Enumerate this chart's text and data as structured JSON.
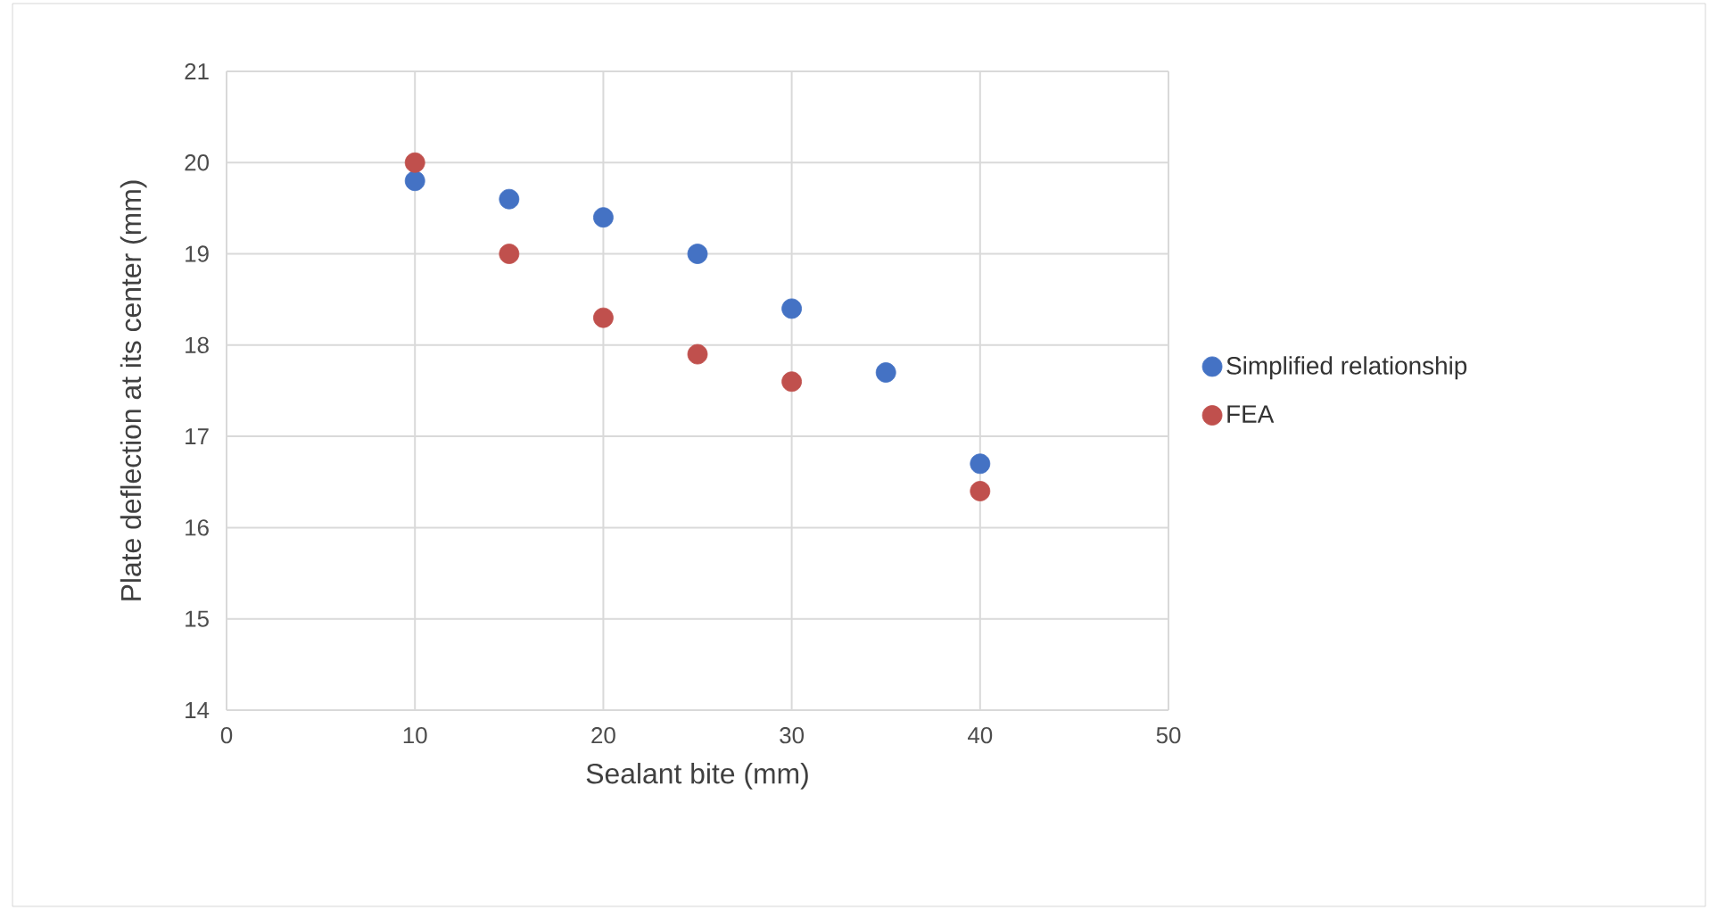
{
  "chart_data": {
    "type": "scatter",
    "xlabel": "Sealant bite (mm)",
    "ylabel": "Plate deflection at its center (mm)",
    "xlim": [
      0,
      50
    ],
    "xticks": [
      0,
      10,
      20,
      30,
      40,
      50
    ],
    "ylim": [
      14,
      21
    ],
    "yticks": [
      14,
      15,
      16,
      17,
      18,
      19,
      20,
      21
    ],
    "grid": true,
    "legend": "right",
    "marker": "circle",
    "series": [
      {
        "name": "Simplified relationship",
        "color": "#4472c4",
        "x": [
          10,
          15,
          20,
          25,
          30,
          35,
          40
        ],
        "values": [
          19.8,
          19.6,
          19.4,
          19.0,
          18.4,
          17.7,
          16.7
        ]
      },
      {
        "name": "FEA",
        "color": "#c0504d",
        "x": [
          10,
          15,
          20,
          25,
          30,
          40
        ],
        "values": [
          20.0,
          19.0,
          18.3,
          17.9,
          17.6,
          16.4
        ]
      }
    ]
  }
}
